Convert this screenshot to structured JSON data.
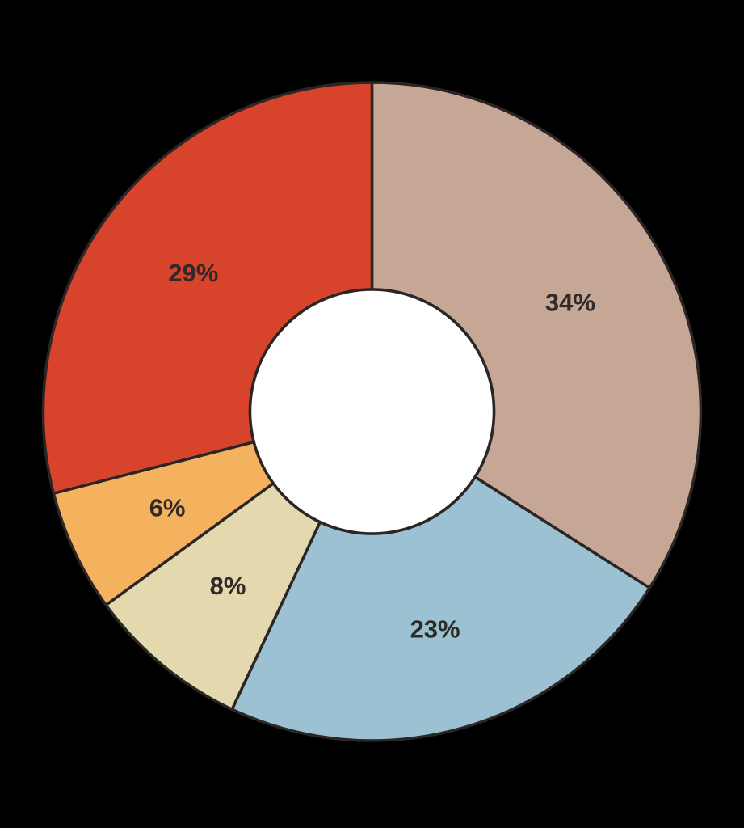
{
  "page": {
    "background_color": "#000000"
  },
  "chart_data": {
    "type": "pie",
    "subtype": "donut",
    "title": "",
    "legend_position": "none",
    "axes": "none",
    "direction": "clockwise",
    "start_angle": "12-o-clock",
    "categories": [
      "34%",
      "23%",
      "8%",
      "6%",
      "29%"
    ],
    "values": [
      34,
      23,
      8,
      6,
      29
    ],
    "slices": [
      {
        "label": "34%",
        "value": 34,
        "color": "#C6A795"
      },
      {
        "label": "23%",
        "value": 23,
        "color": "#9CC1D2"
      },
      {
        "label": "8%",
        "value": 8,
        "color": "#E3D8AE"
      },
      {
        "label": "6%",
        "value": 6,
        "color": "#F4B25F"
      },
      {
        "label": "29%",
        "value": 29,
        "color": "#D8432B"
      }
    ],
    "hole_color": "#FFFFFF",
    "stroke_color": "#2B2525",
    "label_color": "#2F2A28"
  }
}
